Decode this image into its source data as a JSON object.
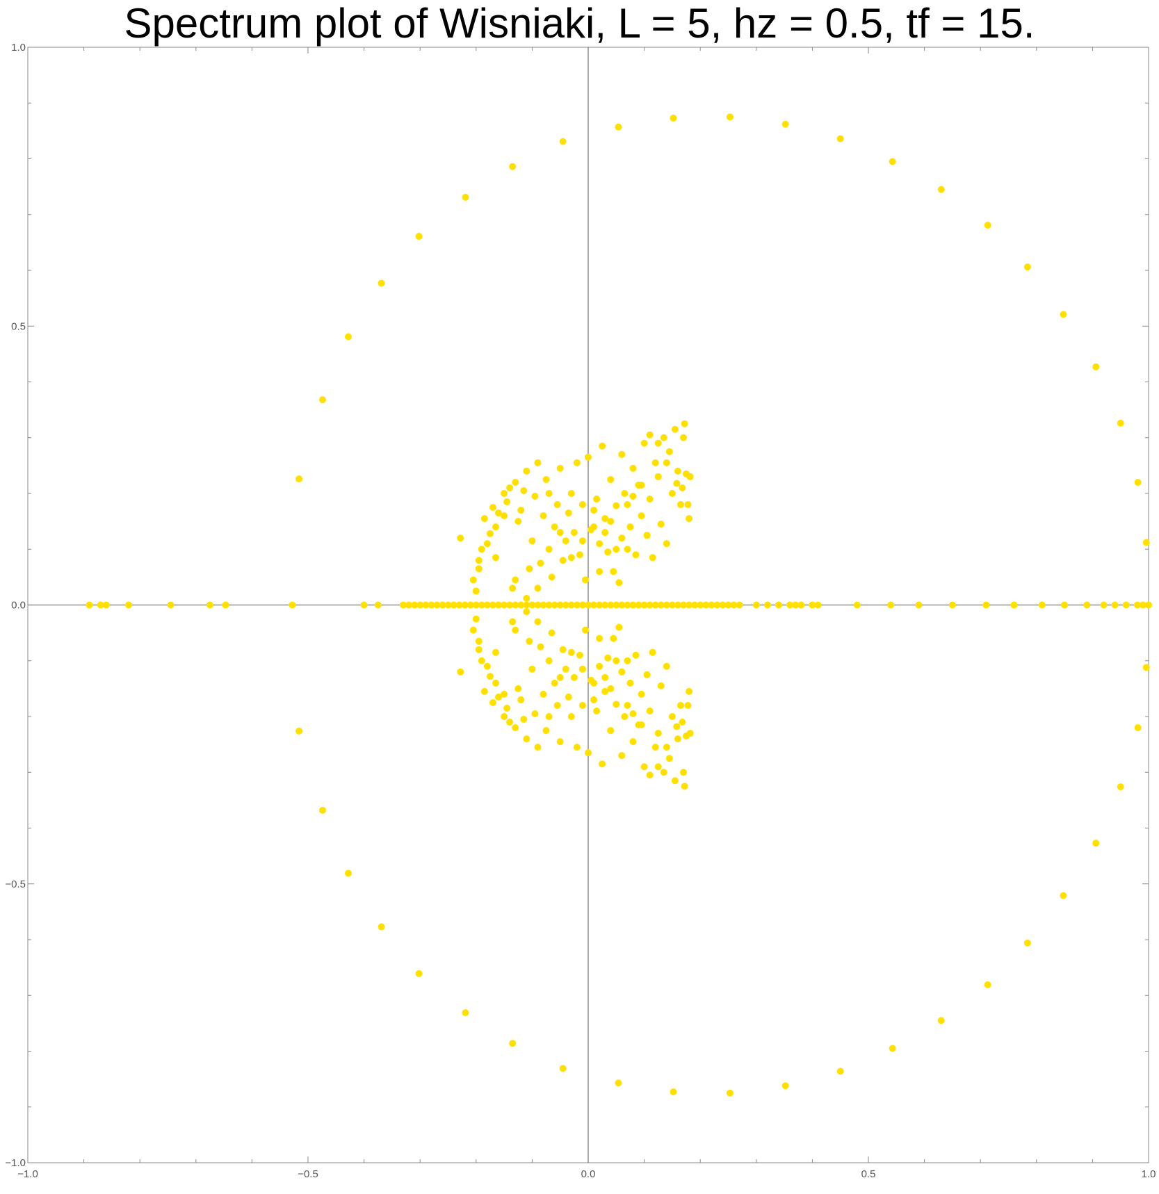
{
  "chart_data": {
    "type": "scatter",
    "title": "Spectrum plot of Wisniaki, L = 5, hz = 0.5, tf = 15.",
    "xlabel": "",
    "ylabel": "",
    "xlim": [
      -1.0,
      1.0
    ],
    "ylim": [
      -1.0,
      1.0
    ],
    "x_ticks": [
      -1.0,
      -0.5,
      0.0,
      0.5,
      1.0
    ],
    "y_ticks": [
      -1.0,
      -0.5,
      0.0,
      0.5,
      1.0
    ],
    "x_tick_labels": [
      "−1.0",
      "−0.5",
      "0.0",
      "0.5",
      "1.0"
    ],
    "y_tick_labels": [
      "−1.0",
      "−0.5",
      "0.0",
      "0.5",
      "1.0"
    ],
    "grid": false,
    "legend": "none",
    "point_color": "#FFE000",
    "axis_color": "#555555",
    "symmetry": "Points with y > 0 are listed; each is mirrored at (x, -y). Points on the real axis have y = 0.",
    "real_axis_points": [
      -0.89,
      -0.87,
      -0.86,
      -0.82,
      -0.745,
      -0.675,
      -0.647,
      -0.528,
      -0.4,
      -0.375,
      -0.33,
      -0.32,
      -0.31,
      -0.3,
      -0.29,
      -0.28,
      -0.27,
      -0.26,
      -0.25,
      -0.24,
      -0.23,
      -0.22,
      -0.21,
      -0.2,
      -0.19,
      -0.18,
      -0.17,
      -0.16,
      -0.15,
      -0.14,
      -0.13,
      -0.12,
      -0.11,
      -0.1,
      -0.09,
      -0.08,
      -0.07,
      -0.06,
      -0.05,
      -0.04,
      -0.03,
      -0.02,
      -0.01,
      0.0,
      0.01,
      0.02,
      0.03,
      0.04,
      0.05,
      0.06,
      0.07,
      0.08,
      0.09,
      0.1,
      0.11,
      0.12,
      0.13,
      0.14,
      0.15,
      0.16,
      0.17,
      0.18,
      0.19,
      0.2,
      0.21,
      0.22,
      0.23,
      0.24,
      0.25,
      0.26,
      0.27,
      0.3,
      0.32,
      0.34,
      0.36,
      0.37,
      0.38,
      0.4,
      0.41,
      0.48,
      0.54,
      0.59,
      0.65,
      0.71,
      0.76,
      0.81,
      0.85,
      0.89,
      0.92,
      0.94,
      0.96,
      0.98,
      0.99,
      1.0
    ],
    "outer_ring_upper": [
      [
        -0.516,
        0.226
      ],
      [
        -0.474,
        0.368
      ],
      [
        -0.428,
        0.481
      ],
      [
        -0.369,
        0.577
      ],
      [
        -0.302,
        0.661
      ],
      [
        -0.219,
        0.731
      ],
      [
        -0.135,
        0.786
      ],
      [
        -0.045,
        0.831
      ],
      [
        0.054,
        0.857
      ],
      [
        0.152,
        0.873
      ],
      [
        0.253,
        0.875
      ],
      [
        0.352,
        0.862
      ],
      [
        0.45,
        0.836
      ],
      [
        0.543,
        0.795
      ],
      [
        0.63,
        0.745
      ],
      [
        0.713,
        0.681
      ],
      [
        0.784,
        0.606
      ],
      [
        0.848,
        0.521
      ],
      [
        0.906,
        0.427
      ],
      [
        0.95,
        0.326
      ],
      [
        0.981,
        0.22
      ],
      [
        0.996,
        0.112
      ]
    ],
    "inner_cluster_upper": [
      [
        -0.228,
        0.12
      ],
      [
        -0.205,
        0.045
      ],
      [
        -0.2,
        0.025
      ],
      [
        -0.195,
        0.065
      ],
      [
        -0.19,
        0.1
      ],
      [
        -0.185,
        0.155
      ],
      [
        -0.175,
        0.128
      ],
      [
        -0.17,
        0.175
      ],
      [
        -0.165,
        0.085
      ],
      [
        -0.16,
        0.165
      ],
      [
        -0.15,
        0.16
      ],
      [
        -0.145,
        0.185
      ],
      [
        -0.14,
        0.21
      ],
      [
        -0.135,
        0.03
      ],
      [
        -0.13,
        0.045
      ],
      [
        -0.125,
        0.15
      ],
      [
        -0.12,
        0.17
      ],
      [
        -0.115,
        0.205
      ],
      [
        -0.11,
        0.012
      ],
      [
        -0.105,
        0.065
      ],
      [
        -0.1,
        0.115
      ],
      [
        -0.095,
        0.195
      ],
      [
        -0.09,
        0.03
      ],
      [
        -0.085,
        0.075
      ],
      [
        -0.08,
        0.16
      ],
      [
        -0.075,
        0.225
      ],
      [
        -0.07,
        0.1
      ],
      [
        -0.065,
        0.05
      ],
      [
        -0.06,
        0.14
      ],
      [
        -0.055,
        0.18
      ],
      [
        -0.05,
        0.245
      ],
      [
        -0.045,
        0.08
      ],
      [
        -0.04,
        0.115
      ],
      [
        -0.035,
        0.165
      ],
      [
        -0.03,
        0.2
      ],
      [
        -0.025,
        0.13
      ],
      [
        -0.02,
        0.255
      ],
      [
        -0.015,
        0.09
      ],
      [
        -0.01,
        0.18
      ],
      [
        -0.005,
        0.045
      ],
      [
        0.0,
        0.265
      ],
      [
        0.005,
        0.135
      ],
      [
        0.01,
        0.17
      ],
      [
        0.015,
        0.19
      ],
      [
        0.02,
        0.11
      ],
      [
        0.025,
        0.285
      ],
      [
        0.03,
        0.155
      ],
      [
        0.035,
        0.095
      ],
      [
        0.04,
        0.225
      ],
      [
        0.045,
        0.06
      ],
      [
        0.05,
        0.178
      ],
      [
        0.055,
        0.04
      ],
      [
        0.06,
        0.27
      ],
      [
        0.065,
        0.2
      ],
      [
        0.07,
        0.1
      ],
      [
        0.075,
        0.14
      ],
      [
        0.08,
        0.245
      ],
      [
        0.085,
        0.09
      ],
      [
        0.09,
        0.215
      ],
      [
        0.095,
        0.16
      ],
      [
        0.1,
        0.29
      ],
      [
        0.105,
        0.125
      ],
      [
        0.11,
        0.19
      ],
      [
        0.115,
        0.085
      ],
      [
        0.12,
        0.255
      ],
      [
        0.125,
        0.23
      ],
      [
        0.13,
        0.145
      ],
      [
        0.135,
        0.3
      ],
      [
        0.14,
        0.11
      ],
      [
        0.145,
        0.275
      ],
      [
        0.15,
        0.2
      ],
      [
        0.155,
        0.315
      ],
      [
        0.16,
        0.24
      ],
      [
        0.165,
        0.18
      ],
      [
        0.17,
        0.3
      ],
      [
        0.172,
        0.325
      ],
      [
        0.175,
        0.235
      ],
      [
        0.178,
        0.18
      ],
      [
        0.18,
        0.155
      ],
      [
        0.182,
        0.23
      ],
      [
        0.168,
        0.21
      ],
      [
        0.158,
        0.218
      ],
      [
        0.14,
        0.255
      ],
      [
        0.125,
        0.29
      ],
      [
        0.11,
        0.305
      ],
      [
        0.095,
        0.215
      ],
      [
        0.08,
        0.195
      ],
      [
        0.07,
        0.18
      ],
      [
        0.06,
        0.12
      ],
      [
        0.05,
        0.1
      ],
      [
        0.04,
        0.15
      ],
      [
        0.03,
        0.13
      ],
      [
        0.02,
        0.06
      ],
      [
        0.01,
        0.14
      ],
      [
        -0.01,
        0.115
      ],
      [
        -0.03,
        0.085
      ],
      [
        -0.05,
        0.13
      ],
      [
        -0.07,
        0.2
      ],
      [
        -0.09,
        0.255
      ],
      [
        -0.11,
        0.24
      ],
      [
        -0.13,
        0.22
      ],
      [
        -0.15,
        0.2
      ],
      [
        -0.165,
        0.14
      ],
      [
        -0.18,
        0.11
      ],
      [
        -0.195,
        0.08
      ]
    ]
  }
}
